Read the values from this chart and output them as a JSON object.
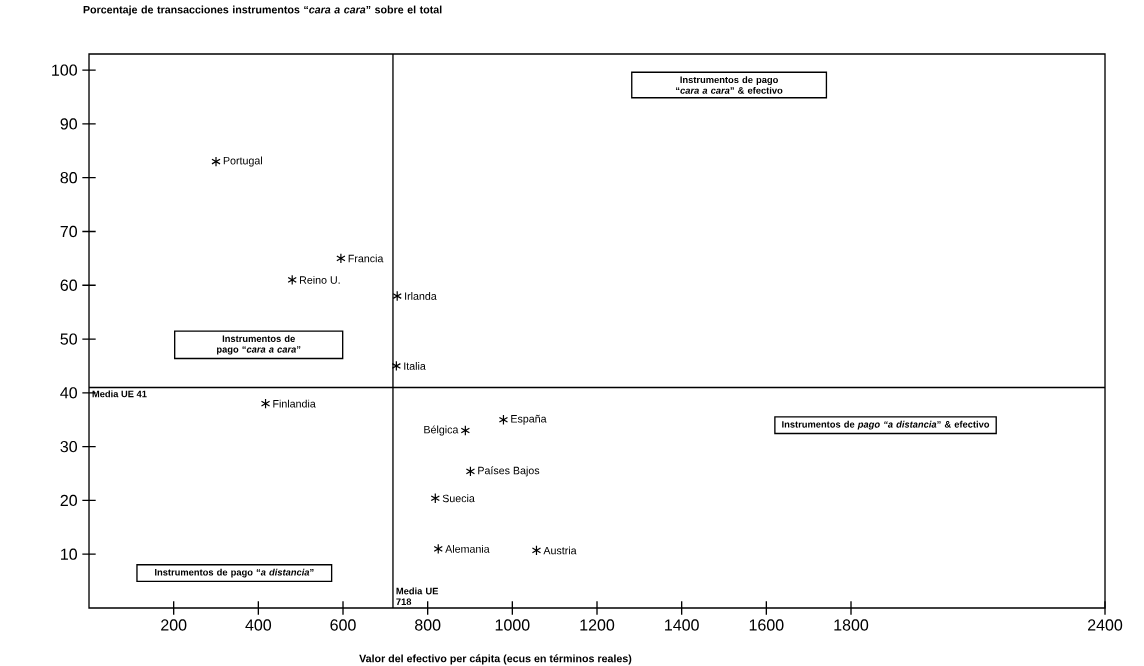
{
  "chart_data": {
    "type": "scatter",
    "ylabel": "Porcentaje de transacciones instrumentos “*cara a cara*” sobre el total",
    "xlabel": "Valor del efectivo per cápita (ecus en términos reales)",
    "x": [
      300,
      595,
      480,
      728,
      726,
      417,
      889,
      979,
      901,
      818,
      825,
      1057
    ],
    "values": [
      83,
      65,
      61,
      58,
      45,
      38,
      33,
      35,
      25.4,
      20.4,
      11,
      10.7
    ],
    "color": "#000000",
    "marker": "cross",
    "grid": false,
    "xlim": [
      0,
      2400
    ],
    "xticks": [
      200,
      400,
      600,
      800,
      1000,
      1200,
      1400,
      1600,
      1800,
      2400
    ],
    "ylim": [
      0,
      103
    ],
    "yticks": [
      10,
      20,
      30,
      40,
      50,
      60,
      70,
      80,
      90,
      100
    ],
    "ref_lines": [
      {
        "axis": "x",
        "value": 718,
        "label": "Media UE 718"
      },
      {
        "axis": "y",
        "value": 41,
        "label": "Media UE 41"
      }
    ],
    "annotations": [
      "Instrumentos de pago “*cara a cara*” & efectivo",
      "Instrumentos de pago “*cara a cara*”",
      "Instrumentos de *pago “a distancia*” & efectivo",
      "Instrumentos de pago “*a distancia*”",
      {
        "text": "Portugal",
        "x": 300,
        "y": 83
      },
      {
        "text": "Francia",
        "x": 595,
        "y": 65
      },
      {
        "text": "Reino U.",
        "x": 480,
        "y": 61
      },
      {
        "text": "Irlanda",
        "x": 728,
        "y": 58
      },
      {
        "text": "Italia",
        "x": 726,
        "y": 45
      },
      {
        "text": "Finlandia",
        "x": 417,
        "y": 38
      },
      {
        "text": "Bélgica",
        "x": 889,
        "y": 33
      },
      {
        "text": "España",
        "x": 979,
        "y": 35
      },
      {
        "text": "Países Bajos",
        "x": 901,
        "y": 25.4
      },
      {
        "text": "Suecia",
        "x": 818,
        "y": 20.4
      },
      {
        "text": "Alemania",
        "x": 825,
        "y": 11
      },
      {
        "text": "Austria",
        "x": 1057,
        "y": 10.7
      }
    ]
  }
}
